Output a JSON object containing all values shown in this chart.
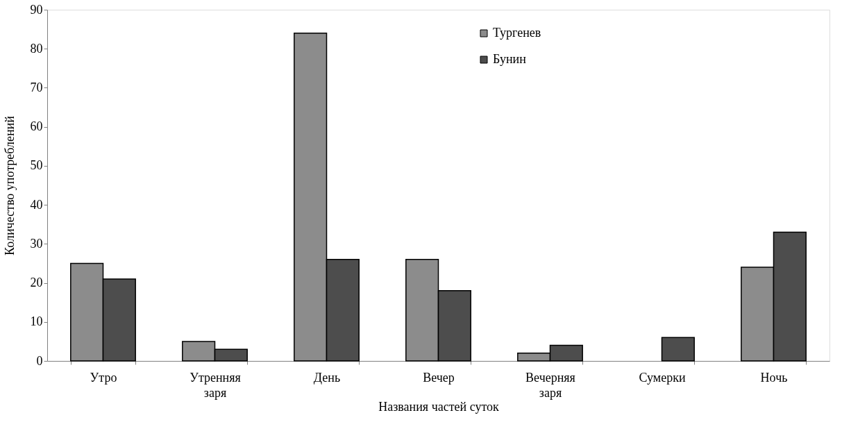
{
  "chart_data": {
    "type": "bar",
    "xlabel": "Названия частей суток",
    "ylabel": "Количество употреблений",
    "categories": [
      "Утро",
      "Утренняя заря",
      "День",
      "Вечер",
      "Вечерняя заря",
      "Сумерки",
      "Ночь"
    ],
    "series": [
      {
        "name": "Тургенев",
        "color": "#8c8c8c",
        "values": [
          25,
          5,
          84,
          26,
          2,
          null,
          24
        ]
      },
      {
        "name": "Бунин",
        "color": "#4d4d4d",
        "values": [
          21,
          3,
          26,
          18,
          4,
          6,
          33
        ]
      }
    ],
    "ylim": [
      0,
      90
    ],
    "yticks": [
      0,
      10,
      20,
      30,
      40,
      50,
      60,
      70,
      80,
      90
    ],
    "grid": false,
    "legend": "top right"
  }
}
